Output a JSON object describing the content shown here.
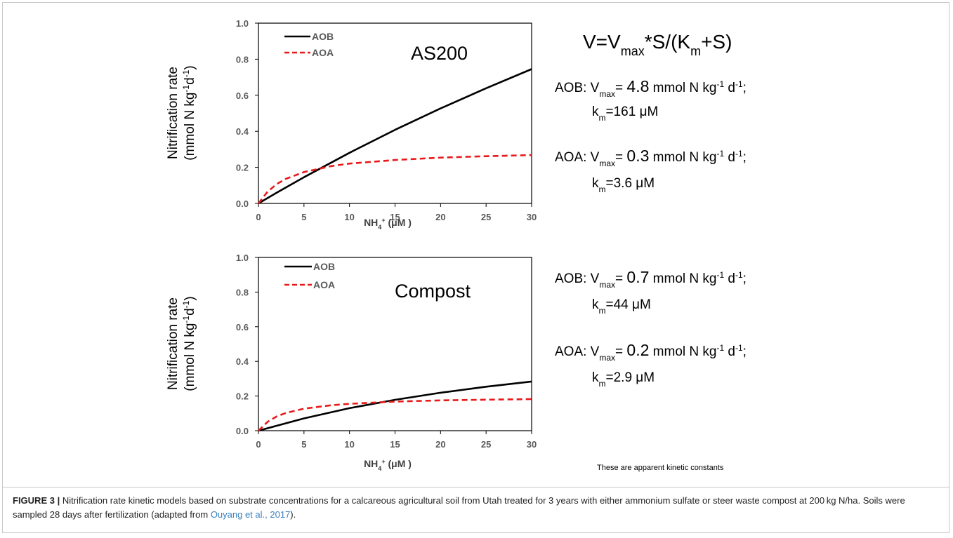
{
  "chart_data": [
    {
      "type": "line",
      "title": "AS200",
      "xlabel": "NH₄⁺ (μM )",
      "ylabel": "Nitrification rate\n(mmol N kg⁻¹d⁻¹)",
      "xlim": [
        0,
        30
      ],
      "ylim": [
        0,
        1.0
      ],
      "xticks": [
        "0",
        "5",
        "10",
        "15",
        "20",
        "25",
        "30"
      ],
      "yticks": [
        "0.0",
        "0.2",
        "0.4",
        "0.6",
        "0.8",
        "1.0"
      ],
      "legend_position": "top-left",
      "series": [
        {
          "name": "AOB",
          "color": "#000000",
          "style": "solid",
          "x": [
            0,
            2,
            5,
            10,
            15,
            20,
            25,
            30
          ],
          "y": [
            0,
            0.059,
            0.145,
            0.281,
            0.408,
            0.527,
            0.639,
            0.745
          ]
        },
        {
          "name": "AOA",
          "color": "#e8191a",
          "style": "dashed",
          "x": [
            0,
            1,
            2,
            3,
            5,
            8,
            10,
            15,
            20,
            25,
            30
          ],
          "y": [
            0,
            0.065,
            0.107,
            0.136,
            0.174,
            0.207,
            0.221,
            0.241,
            0.254,
            0.262,
            0.268
          ]
        }
      ]
    },
    {
      "type": "line",
      "title": "Compost",
      "xlabel": "NH₄⁺ (μM )",
      "ylabel": "Nitrification rate\n(mmol N kg⁻¹d⁻¹)",
      "xlim": [
        0,
        30
      ],
      "ylim": [
        0,
        1.0
      ],
      "xticks": [
        "0",
        "5",
        "10",
        "15",
        "20",
        "25",
        "30"
      ],
      "yticks": [
        "0.0",
        "0.2",
        "0.4",
        "0.6",
        "0.8",
        "1.0"
      ],
      "legend_position": "top-left",
      "series": [
        {
          "name": "AOB",
          "color": "#000000",
          "style": "solid",
          "x": [
            0,
            5,
            10,
            15,
            20,
            25,
            30
          ],
          "y": [
            0,
            0.071,
            0.13,
            0.178,
            0.219,
            0.254,
            0.284
          ]
        },
        {
          "name": "AOA",
          "color": "#e8191a",
          "style": "dashed",
          "x": [
            0,
            1,
            2,
            3,
            5,
            8,
            10,
            15,
            20,
            25,
            30
          ],
          "y": [
            0,
            0.051,
            0.082,
            0.102,
            0.127,
            0.147,
            0.155,
            0.168,
            0.175,
            0.179,
            0.182
          ]
        }
      ]
    }
  ],
  "annotations": {
    "equation": {
      "v": "V=V",
      "sub1": "max",
      "mid": "*S/(K",
      "sub2": "m",
      "end": "+S)"
    },
    "as200": {
      "aob_line1": {
        "pre": "AOB: V",
        "sub": "max",
        "eq": "= ",
        "val": "4.8",
        "unit": " mmol N kg",
        "sup1": "-1",
        "d": " d",
        "sup2": "-1",
        "end": ";"
      },
      "aob_line2": {
        "pre": "k",
        "sub": "m",
        "rest": "=161 μM"
      },
      "aoa_line1": {
        "pre": "AOA: V",
        "sub": "max",
        "eq": "= ",
        "val": "0.3",
        "unit": " mmol N kg",
        "sup1": "-1",
        "d": " d",
        "sup2": "-1",
        "end": ";"
      },
      "aoa_line2": {
        "pre": "k",
        "sub": "m",
        "rest": "=3.6  μM"
      }
    },
    "compost": {
      "aob_line1": {
        "pre": "AOB: V",
        "sub": "max",
        "eq": "= ",
        "val": "0.7",
        "unit": " mmol N kg",
        "sup1": "-1",
        "d": " d",
        "sup2": "-1",
        "end": ";"
      },
      "aob_line2": {
        "pre": "k",
        "sub": "m",
        "rest": "=44  μM"
      },
      "aoa_line1": {
        "pre": "AOA: V",
        "sub": "max",
        "eq": "= ",
        "val": "0.2",
        "unit": " mmol N kg",
        "sup1": "-1",
        "d": " d",
        "sup2": "-1",
        "end": ";"
      },
      "aoa_line2": {
        "pre": "k",
        "sub": "m",
        "rest": "=2.9  μM"
      }
    },
    "note": "These are apparent kinetic constants"
  },
  "caption": {
    "label": "FIGURE 3 |",
    "text": " Nitrification rate kinetic models based on substrate concentrations for a calcareous agricultural soil from Utah treated for 3 years with either ammonium sulfate or steer waste compost at 200 kg N/ha. Soils were sampled 28 days after fertilization (adapted from ",
    "ref": "Ouyang et al., 2017",
    "end": ")."
  }
}
